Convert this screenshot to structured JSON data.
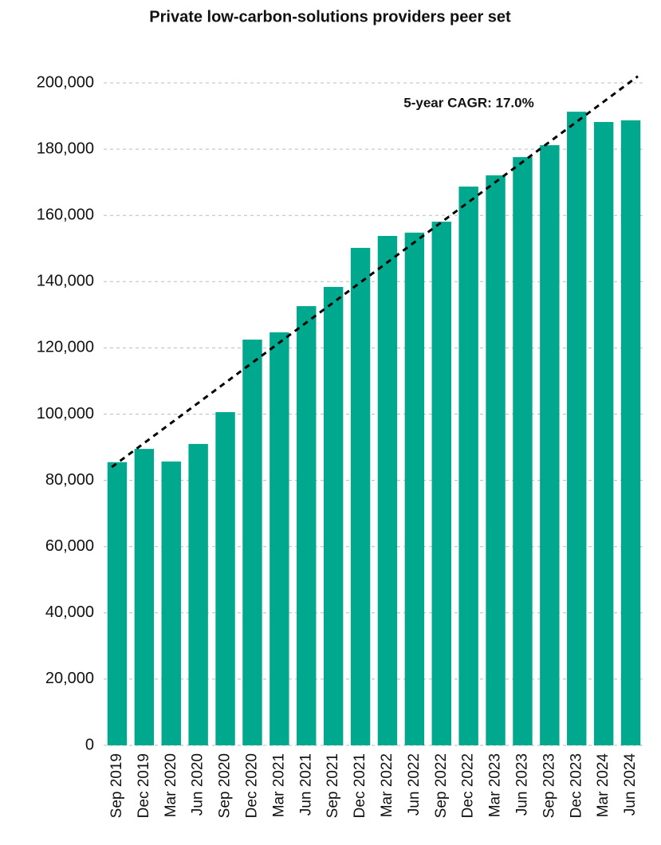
{
  "chart_data": {
    "type": "bar",
    "title": "Private low-carbon-solutions providers peer set",
    "categories": [
      "Sep 2019",
      "Dec 2019",
      "Mar 2020",
      "Jun 2020",
      "Sep 2020",
      "Dec 2020",
      "Mar 2021",
      "Jun 2021",
      "Sep 2021",
      "Dec 2021",
      "Mar 2022",
      "Jun 2022",
      "Sep 2022",
      "Dec 2022",
      "Mar 2023",
      "Jun 2023",
      "Sep 2023",
      "Dec 2023",
      "Mar 2024",
      "Jun 2024"
    ],
    "values": [
      85500,
      89500,
      85700,
      91000,
      100600,
      122500,
      124700,
      132600,
      138400,
      150200,
      153800,
      154800,
      158100,
      168700,
      172100,
      177600,
      181200,
      191300,
      188200,
      188700
    ],
    "color": "#00a88e",
    "ylim": [
      0,
      200000
    ],
    "yticks": [
      0,
      {
        "value": 20000,
        "label": "20,000"
      },
      {
        "value": 40000,
        "label": "40,000"
      },
      {
        "value": 60000,
        "label": "60,000"
      },
      {
        "value": 80000,
        "label": "80,000"
      },
      {
        "value": 100000,
        "label": "100,000"
      },
      {
        "value": 120000,
        "label": "120,000"
      },
      {
        "value": 140000,
        "label": "140,000"
      },
      {
        "value": 160000,
        "label": "160,000"
      },
      {
        "value": 180000,
        "label": "180,000"
      },
      {
        "value": 200000,
        "label": "200,000"
      }
    ],
    "grid": true,
    "trend": {
      "label": "5-year CAGR: 17.0%",
      "start": 84000,
      "end": 202000
    }
  }
}
